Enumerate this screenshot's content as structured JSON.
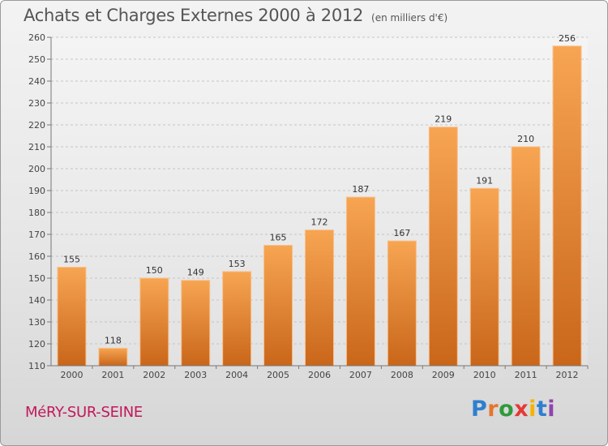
{
  "header": {
    "title": "Achats et Charges Externes 2000 à 2012",
    "subtitle": "(en milliers d'€)"
  },
  "footer": {
    "commune": "MéRY-SUR-SEINE",
    "logo_text": "Proxiti",
    "logo_letters": [
      "P",
      "r",
      "o",
      "x",
      "i",
      "t",
      "i"
    ]
  },
  "colors": {
    "bar_light": "#f7a552",
    "bar_dark": "#c9661a",
    "commune_text": "#c2185b"
  },
  "chart_data": {
    "type": "bar",
    "categories": [
      "2000",
      "2001",
      "2002",
      "2003",
      "2004",
      "2005",
      "2006",
      "2007",
      "2008",
      "2009",
      "2010",
      "2011",
      "2012"
    ],
    "values": [
      155,
      118,
      150,
      149,
      153,
      165,
      172,
      187,
      167,
      219,
      191,
      210,
      256
    ],
    "ylim": [
      110,
      260
    ],
    "yticks": [
      110,
      120,
      130,
      140,
      150,
      160,
      170,
      180,
      190,
      200,
      210,
      220,
      230,
      240,
      250,
      260
    ],
    "grid": true,
    "data_labels": true
  }
}
